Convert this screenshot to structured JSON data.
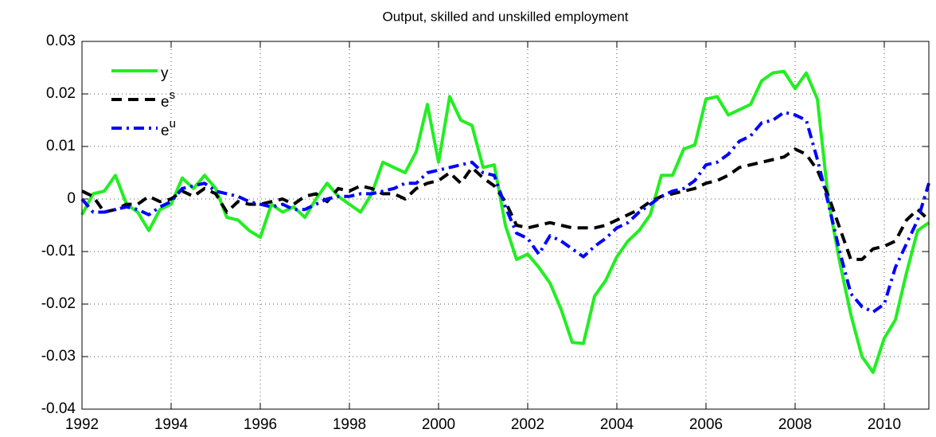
{
  "chart_data": {
    "type": "line",
    "title": "Output, skilled and unskilled employment",
    "x": [
      1992,
      1992.25,
      1992.5,
      1992.75,
      1993,
      1993.25,
      1993.5,
      1993.75,
      1994,
      1994.25,
      1994.5,
      1994.75,
      1995,
      1995.25,
      1995.5,
      1995.75,
      1996,
      1996.25,
      1996.5,
      1996.75,
      1997,
      1997.25,
      1997.5,
      1997.75,
      1998,
      1998.25,
      1998.5,
      1998.75,
      1999,
      1999.25,
      1999.5,
      1999.75,
      2000,
      2000.25,
      2000.5,
      2000.75,
      2001,
      2001.25,
      2001.5,
      2001.75,
      2002,
      2002.25,
      2002.5,
      2002.75,
      2003,
      2003.25,
      2003.5,
      2003.75,
      2004,
      2004.25,
      2004.5,
      2004.75,
      2005,
      2005.25,
      2005.5,
      2005.75,
      2006,
      2006.25,
      2006.5,
      2006.75,
      2007,
      2007.25,
      2007.5,
      2007.75,
      2008,
      2008.25,
      2008.5,
      2008.75,
      2009,
      2009.25,
      2009.5,
      2009.75,
      2010,
      2010.25,
      2010.5,
      2010.75,
      2011
    ],
    "series": [
      {
        "name": "y",
        "color": "#22ee22",
        "dash": "none",
        "values": [
          -0.003,
          0.001,
          0.0015,
          0.0045,
          -0.001,
          -0.0025,
          -0.006,
          -0.002,
          -0.001,
          0.004,
          0.002,
          0.0045,
          0.002,
          -0.0035,
          -0.004,
          -0.006,
          -0.0073,
          -0.001,
          -0.0025,
          -0.0015,
          -0.0035,
          0,
          0.003,
          0.0005,
          -0.001,
          -0.0025,
          0.001,
          0.007,
          0.006,
          0.005,
          0.009,
          0.018,
          0.007,
          0.0195,
          0.015,
          0.014,
          0.006,
          0.0065,
          -0.005,
          -0.0115,
          -0.0105,
          -0.013,
          -0.016,
          -0.021,
          -0.0273,
          -0.0275,
          -0.0185,
          -0.0155,
          -0.011,
          -0.008,
          -0.006,
          -0.003,
          0.0045,
          0.0045,
          0.0095,
          0.0103,
          0.019,
          0.0195,
          0.016,
          0.017,
          0.018,
          0.0225,
          0.024,
          0.0243,
          0.021,
          0.024,
          0.019,
          -0.0005,
          -0.012,
          -0.022,
          -0.03,
          -0.033,
          -0.0265,
          -0.023,
          -0.014,
          -0.006,
          -0.0045
        ]
      },
      {
        "name": "e^s",
        "color": "#000000",
        "dash": "13,8",
        "values": [
          0.0015,
          0.0005,
          -0.0025,
          -0.002,
          -0.001,
          -0.001,
          0.0005,
          -0.0005,
          0,
          0.0015,
          0.0005,
          0.002,
          0.001,
          -0.0025,
          -0.0005,
          -0.001,
          -0.001,
          -0.0005,
          0,
          -0.001,
          0.0005,
          0.001,
          -0.0005,
          0.002,
          0.0015,
          0.0025,
          0.002,
          0.001,
          0.001,
          0,
          0.002,
          0.003,
          0.0035,
          0.005,
          0.003,
          0.006,
          0.004,
          0.0025,
          -0.0005,
          -0.005,
          -0.0055,
          -0.005,
          -0.0045,
          -0.005,
          -0.0055,
          -0.0055,
          -0.0055,
          -0.005,
          -0.004,
          -0.003,
          -0.002,
          -0.0005,
          0.0005,
          0.001,
          0.0015,
          0.002,
          0.003,
          0.0035,
          0.0045,
          0.006,
          0.0065,
          0.007,
          0.0075,
          0.008,
          0.0095,
          0.0085,
          0.0055,
          0.0005,
          -0.0055,
          -0.0115,
          -0.0115,
          -0.0095,
          -0.009,
          -0.008,
          -0.004,
          -0.002,
          -0.004
        ]
      },
      {
        "name": "e^u",
        "color": "#0000ff",
        "dash": "13,6,3,6",
        "values": [
          0,
          -0.0025,
          -0.0025,
          -0.002,
          -0.0015,
          -0.002,
          -0.003,
          -0.0015,
          -0.0005,
          0.002,
          0.0025,
          0.003,
          0.0015,
          0.001,
          0.0005,
          -0.0005,
          -0.001,
          -0.0015,
          -0.001,
          -0.002,
          -0.002,
          -0.001,
          0,
          0.0005,
          0.0005,
          0.001,
          0.001,
          0.0015,
          0.002,
          0.003,
          0.003,
          0.005,
          0.0055,
          0.006,
          0.0065,
          0.007,
          0.005,
          0.0045,
          -0.0015,
          -0.0065,
          -0.0075,
          -0.0105,
          -0.007,
          -0.008,
          -0.0095,
          -0.011,
          -0.009,
          -0.0075,
          -0.0055,
          -0.0045,
          -0.0025,
          -0.001,
          0.0005,
          0.0015,
          0.002,
          0.0035,
          0.0065,
          0.007,
          0.0085,
          0.011,
          0.012,
          0.0145,
          0.015,
          0.0165,
          0.016,
          0.015,
          0.0075,
          -0.001,
          -0.01,
          -0.018,
          -0.0205,
          -0.0215,
          -0.02,
          -0.013,
          -0.0085,
          -0.004,
          0.003
        ]
      }
    ],
    "xlim": [
      1992,
      2011
    ],
    "xticks": [
      1992,
      1994,
      1996,
      1998,
      2000,
      2002,
      2004,
      2006,
      2008,
      2010
    ],
    "ylim": [
      -0.04,
      0.03
    ],
    "yticks": [
      -0.04,
      -0.03,
      -0.02,
      -0.01,
      0,
      0.01,
      0.02,
      0.03
    ],
    "grid": true,
    "legend": "upper left"
  }
}
